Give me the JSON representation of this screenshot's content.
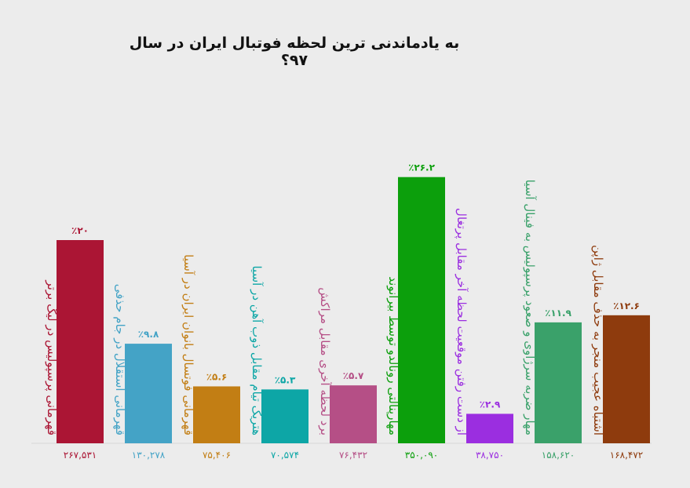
{
  "chart_data": {
    "type": "bar",
    "title": "به یادماندنی ترین لحظه فوتبال ایران در سال ۹۷؟",
    "xlabel": "",
    "ylabel": "",
    "ylim": [
      0,
      30
    ],
    "grid": false,
    "legend": "none",
    "categories": [
      "قهرمانی پرسپولیس در لیگ برتر",
      "قهرمانی استقلال در جام حذفی",
      "قهرمانی فوتسال بانوان ایران در آسیا",
      "هتریک تیام مقابل ذوب آهن در آسیا",
      "برد لحظه آخری مقابل مراکش",
      "مهارپنالتی رونالدو توسط بیرانوند",
      "از دست رفتن موقعیت لحظه آخر مقابل پرتغال",
      "مهار ضربه سرژاوی و صعود پرسپولیس به فینال آسیا",
      "اشتباه عجیب منجر به حذف مقابل ژاپن"
    ],
    "values": [
      20,
      9.8,
      5.6,
      5.3,
      5.7,
      26.2,
      2.9,
      11.9,
      12.6
    ],
    "value_labels": [
      "٪۲۰",
      "٪۹.۸",
      "٪۵.۶",
      "٪۵.۳",
      "٪۵.۷",
      "٪۲۶.۲",
      "٪۲.۹",
      "٪۱۱.۹",
      "٪۱۲.۶"
    ],
    "vote_counts": [
      "۲۶۷,۵۳۱",
      "۱۳۰,۲۷۸",
      "۷۵,۴۰۶",
      "۷۰,۵۷۴",
      "۷۶,۴۳۲",
      "۳۵۰,۰۹۰",
      "۳۸,۷۵۰",
      "۱۵۸,۶۲۰",
      "۱۶۸,۴۷۲"
    ],
    "colors": [
      "#ab1534",
      "#44a3c6",
      "#c27e14",
      "#0da6a6",
      "#b54f86",
      "#0c9f0c",
      "#9b2ee0",
      "#3aa16a",
      "#8e3b0d"
    ]
  }
}
